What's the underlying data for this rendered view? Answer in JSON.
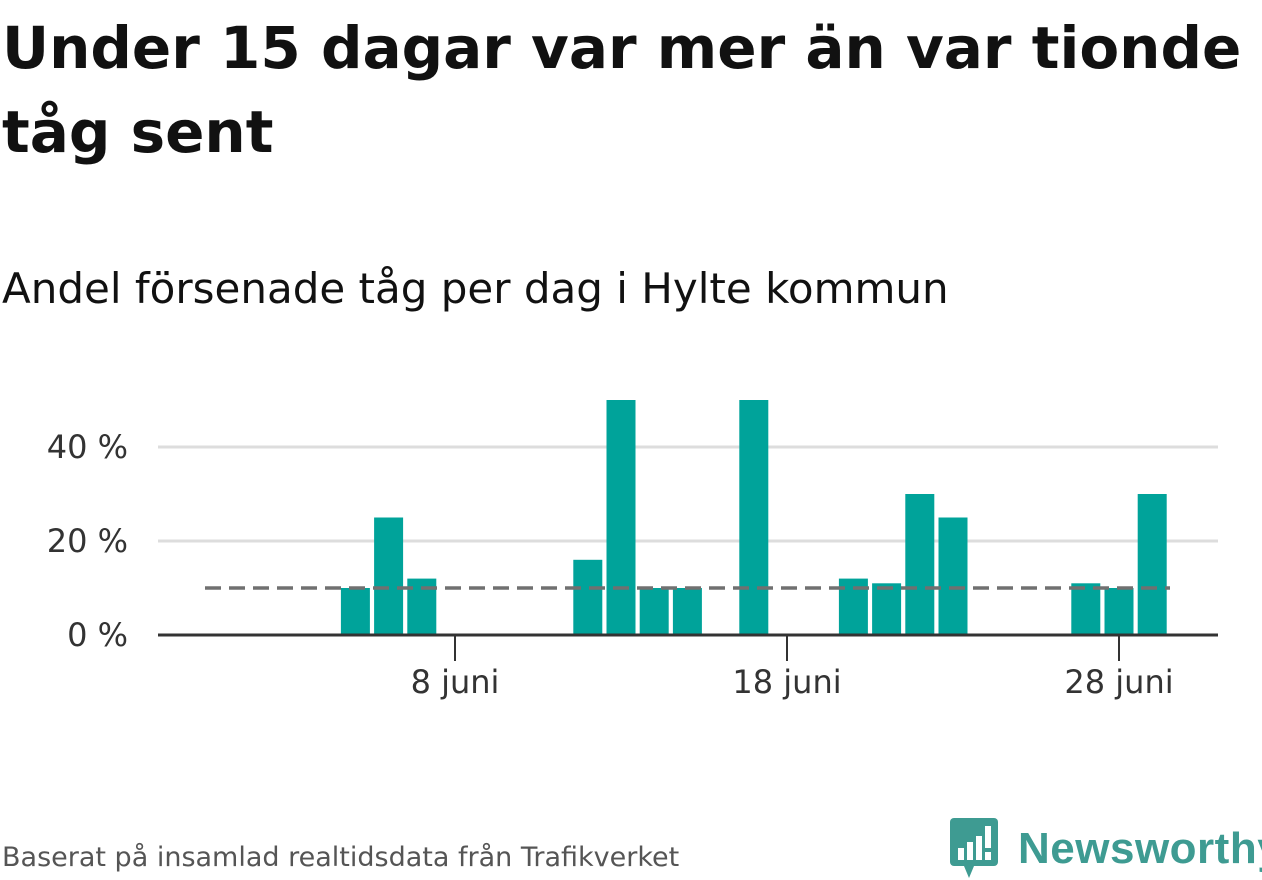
{
  "title": "Under 15 dagar var mer än var tionde tåg sent",
  "subtitle": "Andel försenade tåg per dag i Hylte kommun",
  "source": "Baserat på insamlad realtidsdata från Trafikverket",
  "brand": {
    "name": "Newsworthy",
    "color": "#3e9b92"
  },
  "colors": {
    "bar": "#00a39a",
    "reference": "#707070",
    "grid": "#dddddd",
    "axis": "#333333"
  },
  "chart_data": {
    "type": "bar",
    "x": [
      2,
      3,
      4,
      5,
      6,
      7,
      8,
      9,
      10,
      11,
      12,
      13,
      14,
      15,
      16,
      17,
      18,
      19,
      20,
      21,
      22,
      23,
      24,
      25,
      26,
      27,
      28,
      29
    ],
    "x_unit": "juni",
    "values": [
      null,
      null,
      null,
      10,
      25,
      12,
      null,
      null,
      null,
      null,
      16,
      50,
      10,
      10,
      null,
      50,
      null,
      null,
      12,
      11,
      30,
      25,
      null,
      null,
      null,
      11,
      10,
      30
    ],
    "reference_line": 10,
    "ylim": [
      0,
      50
    ],
    "y_ticks": [
      {
        "value": 0,
        "label": "0 %"
      },
      {
        "value": 20,
        "label": "20 %"
      },
      {
        "value": 40,
        "label": "40 %"
      }
    ],
    "x_ticks": [
      {
        "value": 8,
        "label": "8 juni"
      },
      {
        "value": 18,
        "label": "18 juni"
      },
      {
        "value": 28,
        "label": "28 juni"
      }
    ],
    "grid": true,
    "legend": "none"
  }
}
